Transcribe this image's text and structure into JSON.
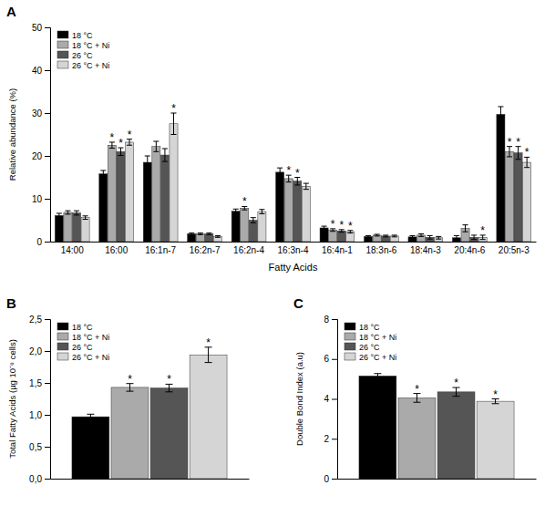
{
  "chart_data": [
    {
      "type": "bar",
      "title": "A",
      "categories": [
        "14:00",
        "16:00",
        "16:1n-7",
        "16:2n-7",
        "16:2n-4",
        "16:3n-4",
        "16:4n-1",
        "18:3n-6",
        "18:4n-3",
        "20:4n-6",
        "20:5n-3"
      ],
      "series": [
        {
          "name": "18 °C",
          "color": "#000000",
          "values": [
            6.1,
            15.8,
            18.5,
            1.8,
            7.1,
            16.2,
            3.2,
            1.2,
            1.1,
            0.9,
            29.7
          ],
          "errors": [
            0.5,
            0.8,
            1.5,
            0.2,
            0.5,
            1.0,
            0.4,
            0.2,
            0.3,
            0.5,
            1.8
          ],
          "stars": [
            false,
            false,
            false,
            false,
            false,
            false,
            false,
            false,
            false,
            false,
            false
          ]
        },
        {
          "name": "18 °C + Ni",
          "color": "#aaaaaa",
          "values": [
            6.8,
            22.5,
            22.2,
            1.8,
            7.8,
            14.7,
            2.7,
            1.5,
            1.5,
            3.1,
            21.0
          ],
          "errors": [
            0.4,
            0.7,
            1.2,
            0.2,
            0.4,
            0.8,
            0.3,
            0.2,
            0.3,
            0.8,
            1.2
          ],
          "stars": [
            false,
            true,
            false,
            false,
            true,
            true,
            true,
            false,
            false,
            false,
            true
          ]
        },
        {
          "name": "26 °C",
          "color": "#555555",
          "values": [
            6.7,
            21.0,
            20.2,
            1.8,
            5.0,
            14.1,
            2.5,
            1.3,
            1.0,
            1.0,
            20.7
          ],
          "errors": [
            0.5,
            0.9,
            1.5,
            0.2,
            0.6,
            0.9,
            0.3,
            0.2,
            0.4,
            0.5,
            1.5
          ],
          "stars": [
            false,
            true,
            false,
            false,
            false,
            true,
            true,
            false,
            false,
            false,
            true
          ]
        },
        {
          "name": "26 °C + Ni",
          "color": "#d5d5d5",
          "values": [
            5.6,
            23.2,
            27.5,
            1.2,
            7.0,
            12.9,
            2.3,
            1.3,
            0.9,
            1.0,
            18.5
          ],
          "errors": [
            0.4,
            0.7,
            2.5,
            0.2,
            0.5,
            0.7,
            0.3,
            0.2,
            0.3,
            0.5,
            1.2
          ],
          "stars": [
            false,
            true,
            true,
            false,
            false,
            false,
            true,
            false,
            false,
            true,
            true
          ]
        }
      ],
      "annotation": "*",
      "xlabel": "Fatty Acids",
      "ylabel": "Relative abundance (%)",
      "ylim": [
        0,
        50
      ],
      "yticks": [
        0,
        10,
        20,
        30,
        40,
        50
      ],
      "legend": "upper left",
      "grid": false
    },
    {
      "type": "bar",
      "title": "B",
      "categories": [
        null
      ],
      "series": [
        {
          "name": "18 °C",
          "color": "#000000",
          "values": [
            0.97
          ],
          "errors": [
            0.04
          ],
          "stars": [
            false
          ]
        },
        {
          "name": "18 °C + Ni",
          "color": "#aaaaaa",
          "values": [
            1.43
          ],
          "errors": [
            0.06
          ],
          "stars": [
            true
          ]
        },
        {
          "name": "26 °C",
          "color": "#555555",
          "values": [
            1.42
          ],
          "errors": [
            0.06
          ],
          "stars": [
            true
          ]
        },
        {
          "name": "26 °C + Ni",
          "color": "#d5d5d5",
          "values": [
            1.94
          ],
          "errors": [
            0.12
          ],
          "stars": [
            true
          ]
        }
      ],
      "annotation": "*",
      "ylabel": "Total Fatty Acids (µg 10⁻⁶ cells)",
      "ylim": [
        0.0,
        2.5
      ],
      "yticks": [
        {
          "value": 0.0,
          "label": "0,0"
        },
        {
          "value": 0.5,
          "label": "0,5"
        },
        {
          "value": 1.0,
          "label": "1,0"
        },
        {
          "value": 1.5,
          "label": "1,5"
        },
        {
          "value": 2.0,
          "label": "2,0"
        },
        {
          "value": 2.5,
          "label": "2,5"
        }
      ],
      "legend": "upper left",
      "grid": false,
      "tick_labels": "y"
    },
    {
      "type": "bar",
      "title": "C",
      "categories": [
        null
      ],
      "series": [
        {
          "name": "18 °C",
          "color": "#000000",
          "values": [
            5.15
          ],
          "errors": [
            0.12
          ],
          "stars": [
            false
          ]
        },
        {
          "name": "18 °C + Ni",
          "color": "#aaaaaa",
          "values": [
            4.05
          ],
          "errors": [
            0.22
          ],
          "stars": [
            true
          ]
        },
        {
          "name": "26 °C",
          "color": "#555555",
          "values": [
            4.35
          ],
          "errors": [
            0.22
          ],
          "stars": [
            true
          ]
        },
        {
          "name": "26 °C + Ni",
          "color": "#d5d5d5",
          "values": [
            3.88
          ],
          "errors": [
            0.12
          ],
          "stars": [
            true
          ]
        }
      ],
      "annotation": "*",
      "ylabel": "Double Bond Index (a.u)",
      "ylim": [
        0,
        8
      ],
      "yticks": [
        0,
        2,
        4,
        6,
        8
      ],
      "legend": "upper left",
      "grid": false,
      "tick_labels": "y"
    }
  ]
}
